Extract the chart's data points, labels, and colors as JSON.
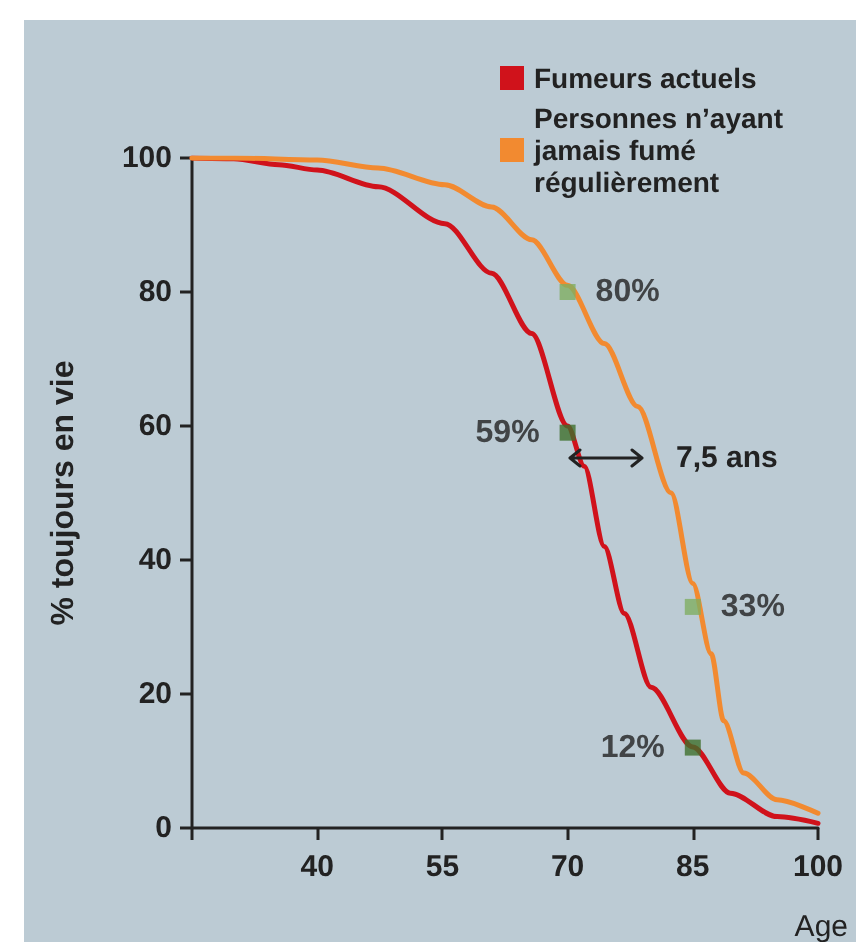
{
  "chart_data": {
    "type": "line",
    "ylabel": "% toujours en vie",
    "xlabel": "Age",
    "xlim": [
      25,
      100
    ],
    "xticks": [
      {
        "value": 25,
        "label": null
      },
      40,
      55,
      70,
      85,
      100
    ],
    "ylim": [
      0,
      100
    ],
    "yticks": [
      0,
      20,
      40,
      60,
      80,
      100
    ],
    "grid": false,
    "legend": "top right",
    "marker": "none",
    "line_style": "solid",
    "series": [
      {
        "name": "Fumeurs actuels",
        "color": "#d0121b",
        "x": [
          25,
          30,
          35.4,
          40,
          47.3,
          55.3,
          60.9,
          65.7,
          70,
          72,
          74.4,
          76.8,
          80,
          85,
          89.5,
          95.1,
          100
        ],
        "values": [
          100,
          99.9,
          99,
          98.2,
          95.7,
          90.2,
          82.8,
          73.8,
          60,
          54,
          42,
          32,
          21,
          12.1,
          5.2,
          1.7,
          0.7
        ]
      },
      {
        "name": "Personnes n’ayant jamais fumé régulièrement",
        "color": "#f28a30",
        "x": [
          25,
          30,
          40,
          47.3,
          55.3,
          60.9,
          65.7,
          70,
          74.4,
          78.4,
          82.4,
          85,
          87.2,
          88.7,
          91.1,
          95.1,
          100
        ],
        "values": [
          100,
          100,
          99.7,
          98.5,
          96,
          92.7,
          87.8,
          81,
          72.3,
          62.9,
          50,
          36.5,
          26,
          16,
          8.2,
          4.2,
          2.2
        ]
      },
      {
        "type": "scatter",
        "marker": "square",
        "x": [
          70,
          85
        ],
        "values": [
          59,
          12
        ],
        "colors": [
          "#3f6f2c",
          "#3f6f2c"
        ],
        "value_labels": [
          "59%",
          "12%"
        ]
      },
      {
        "type": "scatter",
        "marker": "square",
        "x": [
          70,
          85
        ],
        "values": [
          80,
          33
        ],
        "colors": [
          "#7fae62",
          "#7fae62"
        ],
        "value_labels": [
          "80%",
          "33%"
        ]
      }
    ],
    "annotations": [
      "7,5 ans"
    ]
  }
}
